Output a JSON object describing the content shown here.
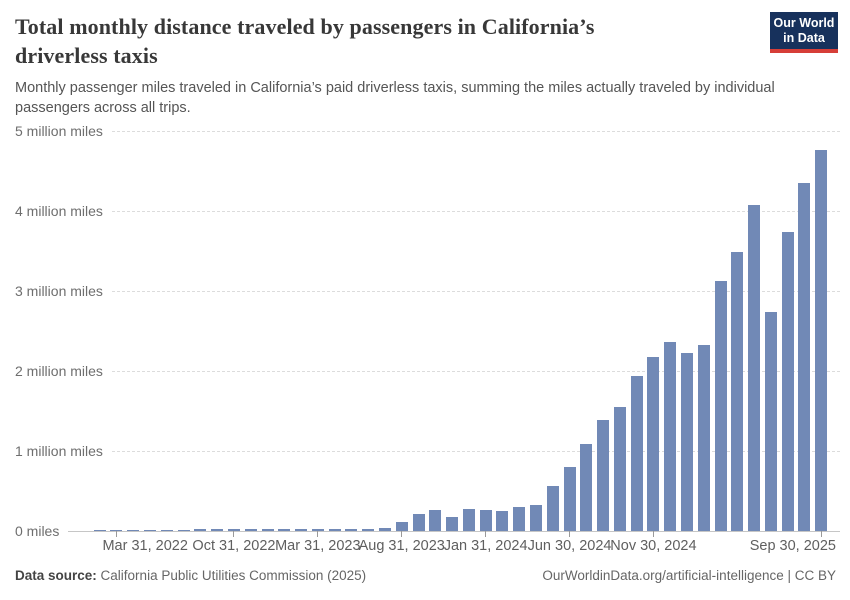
{
  "header": {
    "title_line1": "Total monthly distance traveled by passengers in California’s",
    "title_line2": "driverless taxis",
    "subtitle": "Monthly passenger miles traveled in California’s paid driverless taxis, summing the miles actually traveled by individual passengers across all trips.",
    "logo": {
      "line1": "Our World",
      "line2": "in Data",
      "bg_color": "#17315c",
      "accent_color": "#d63e38"
    }
  },
  "chart_data": {
    "type": "bar",
    "title": "Total monthly distance traveled by passengers in California’s driverless taxis",
    "subtitle": "Monthly passenger miles traveled in California’s paid driverless taxis, summing the miles actually traveled by individual passengers across all trips.",
    "unit": "million miles",
    "bar_color": "#7189b6",
    "grid": true,
    "ylim": [
      0,
      5
    ],
    "ylabel": "",
    "xlabel": "",
    "categories": [
      "Feb 2022",
      "Mar 2022",
      "Apr 2022",
      "May 2022",
      "Jun 2022",
      "Jul 2022",
      "Aug 2022",
      "Sep 2022",
      "Oct 2022",
      "Nov 2022",
      "Dec 2022",
      "Jan 2023",
      "Feb 2023",
      "Mar 2023",
      "Apr 2023",
      "May 2023",
      "Jun 2023",
      "Jul 2023",
      "Aug 2023",
      "Sep 2023",
      "Oct 2023",
      "Nov 2023",
      "Dec 2023",
      "Jan 2024",
      "Feb 2024",
      "Mar 2024",
      "Apr 2024",
      "May 2024",
      "Jun 2024",
      "Jul 2024",
      "Aug 2024",
      "Sep 2024",
      "Oct 2024",
      "Nov 2024",
      "Dec 2024",
      "Jan 2025",
      "Feb 2025",
      "Mar 2025",
      "Apr 2025",
      "May 2025",
      "Jun 2025",
      "Jul 2025",
      "Aug 2025",
      "Sep 2025"
    ],
    "values": [
      0.005,
      0.01,
      0.01,
      0.01,
      0.015,
      0.015,
      0.02,
      0.02,
      0.025,
      0.03,
      0.025,
      0.02,
      0.02,
      0.025,
      0.025,
      0.03,
      0.03,
      0.04,
      0.11,
      0.21,
      0.26,
      0.18,
      0.27,
      0.26,
      0.25,
      0.3,
      0.33,
      0.56,
      0.8,
      1.09,
      1.39,
      1.55,
      1.94,
      2.17,
      2.36,
      2.23,
      2.33,
      3.12,
      3.49,
      4.07,
      2.74,
      3.74,
      4.35,
      4.76
    ],
    "y_ticks": [
      {
        "value": 0,
        "label": "0 miles"
      },
      {
        "value": 1,
        "label": "1 million miles"
      },
      {
        "value": 2,
        "label": "2 million miles"
      },
      {
        "value": 3,
        "label": "3 million miles"
      },
      {
        "value": 4,
        "label": "4 million miles"
      },
      {
        "value": 5,
        "label": "5 million miles"
      }
    ],
    "x_ticks": [
      {
        "index": 1,
        "label": "Mar 31, 2022"
      },
      {
        "index": 8,
        "label": "Oct 31, 2022"
      },
      {
        "index": 13,
        "label": "Mar 31, 2023"
      },
      {
        "index": 18,
        "label": "Aug 31, 2023"
      },
      {
        "index": 23,
        "label": "Jan 31, 2024"
      },
      {
        "index": 28,
        "label": "Jun 30, 2024"
      },
      {
        "index": 33,
        "label": "Nov 30, 2024"
      },
      {
        "index": 43,
        "label": "Sep 30, 2025"
      }
    ],
    "legend": null
  },
  "footer": {
    "datasource_label": "Data source:",
    "datasource_text": "California Public Utilities Commission (2025)",
    "credit": "OurWorldinData.org/artificial-intelligence | CC BY"
  }
}
